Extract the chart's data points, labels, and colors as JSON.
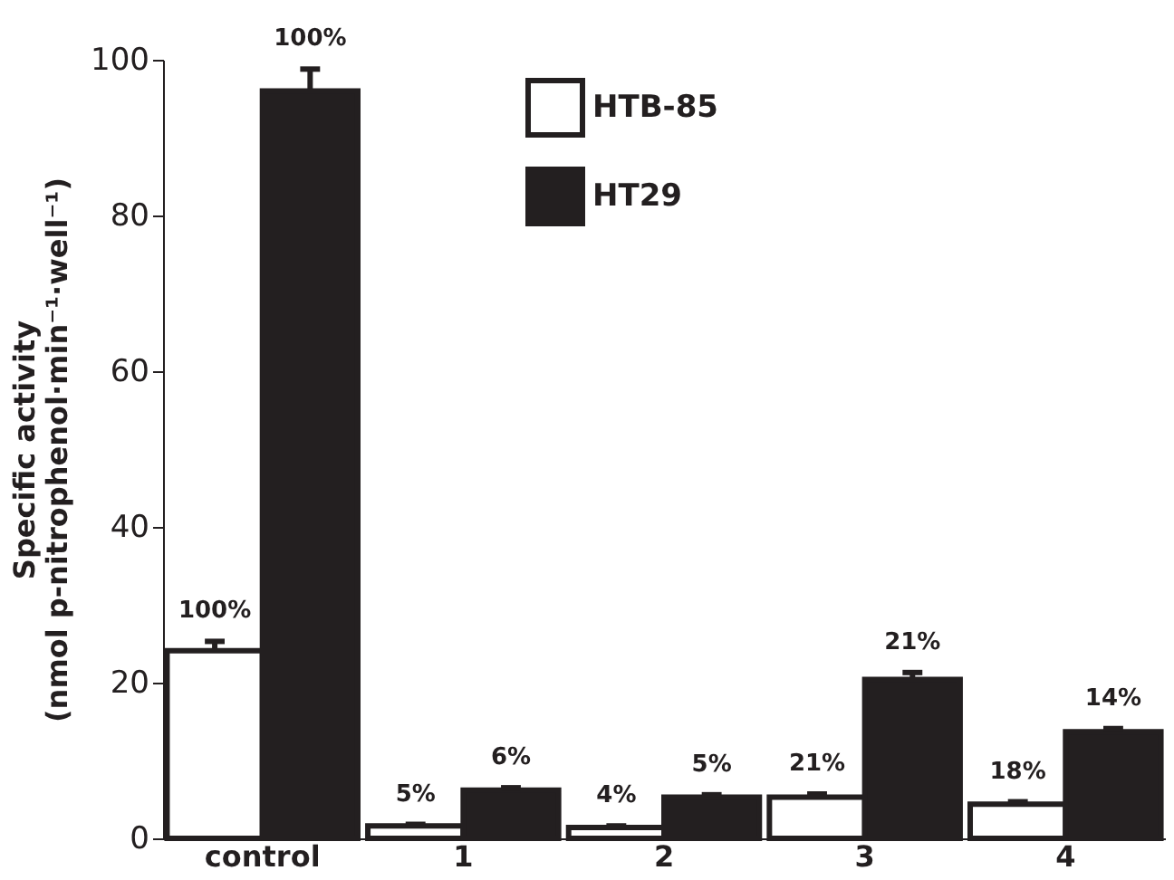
{
  "chart_data": {
    "type": "bar",
    "ylabel": "Specific activity\n(nmol p-nitrophenol·min⁻¹·well⁻¹)",
    "categories": [
      "control",
      "1",
      "2",
      "3",
      "4"
    ],
    "series": [
      {
        "name": "HTB-85",
        "color": "#ffffff",
        "values": [
          24.1,
          1.6,
          1.4,
          5.3,
          4.4
        ],
        "errors": [
          1.2,
          0.2,
          0.2,
          0.4,
          0.3
        ]
      },
      {
        "name": "HT29",
        "color": "#231f20",
        "values": [
          96,
          6.2,
          5.3,
          20.4,
          13.7
        ],
        "errors": [
          2.8,
          0.3,
          0.3,
          0.9,
          0.4
        ]
      }
    ],
    "annotations": [
      {
        "text": "100%",
        "x": "control",
        "y": 24.1
      },
      {
        "text": "5%",
        "x": "1",
        "y": 1.6
      },
      {
        "text": "4%",
        "x": "2",
        "y": 1.4
      },
      {
        "text": "21%",
        "x": "3",
        "y": 5.3
      },
      {
        "text": "18%",
        "x": "4",
        "y": 4.4
      },
      {
        "text": "100%",
        "x": "control",
        "y": 96
      },
      {
        "text": "6%",
        "x": "1",
        "y": 6.2
      },
      {
        "text": "5%",
        "x": "2",
        "y": 5.3
      },
      {
        "text": "21%",
        "x": "3",
        "y": 20.4
      },
      {
        "text": "14%",
        "x": "4",
        "y": 13.7
      }
    ],
    "ylim": [
      0,
      100
    ],
    "yticks": [
      0,
      20,
      40,
      60,
      80,
      100
    ],
    "grid": false,
    "legend": "top"
  }
}
